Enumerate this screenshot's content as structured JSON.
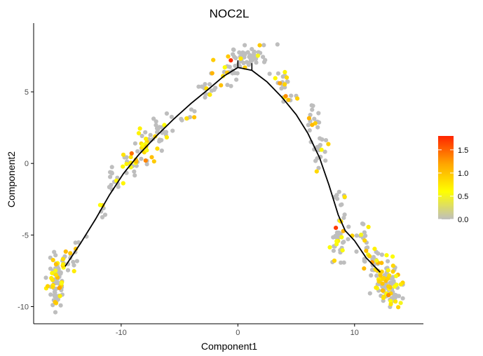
{
  "chart_data": {
    "type": "scatter",
    "title": "NOC2L",
    "xlabel": "Component1",
    "ylabel": "Component2",
    "xlim": [
      -17.5,
      15.9
    ],
    "ylim": [
      -11.2,
      9.8
    ],
    "x_ticks": [
      -10,
      0,
      10
    ],
    "y_ticks": [
      -10,
      -5,
      0,
      5
    ],
    "grid": false,
    "legend": {
      "placement": "right",
      "type": "colorbar",
      "min": 0.0,
      "max": 1.8,
      "ticks": [
        0.0,
        0.5,
        1.0,
        1.5
      ],
      "colors": [
        "#bebebe",
        "#ffff00",
        "#ffa500",
        "#ff2400"
      ]
    },
    "trajectory": [
      [
        -14.8,
        -7.2
      ],
      [
        -13.5,
        -5.6
      ],
      [
        -12.2,
        -3.9
      ],
      [
        -11.0,
        -2.2
      ],
      [
        -9.8,
        -0.7
      ],
      [
        -8.5,
        0.6
      ],
      [
        -7.0,
        1.9
      ],
      [
        -5.5,
        3.1
      ],
      [
        -4.0,
        4.2
      ],
      [
        -2.5,
        5.2
      ],
      [
        -1.2,
        6.1
      ],
      [
        0.0,
        6.7
      ],
      [
        1.2,
        6.5
      ],
      [
        2.5,
        5.7
      ],
      [
        3.8,
        4.6
      ],
      [
        5.0,
        3.4
      ],
      [
        6.0,
        2.1
      ],
      [
        7.0,
        0.4
      ],
      [
        7.8,
        -1.5
      ],
      [
        8.6,
        -3.6
      ],
      [
        9.2,
        -4.7
      ],
      [
        10.0,
        -5.4
      ],
      [
        11.0,
        -6.6
      ],
      [
        12.2,
        -7.6
      ]
    ],
    "cluster_spec": [
      {
        "cx": -15.5,
        "cy": -8.3,
        "sx": 0.45,
        "sy": 0.8,
        "n": 75,
        "hot": 0.32
      },
      {
        "cx": -14.8,
        "cy": -7.0,
        "sx": 0.4,
        "sy": 0.5,
        "n": 18,
        "hot": 0.3
      },
      {
        "cx": -13.5,
        "cy": -5.7,
        "sx": 0.35,
        "sy": 0.4,
        "n": 6,
        "hot": 0.3
      },
      {
        "cx": -11.8,
        "cy": -3.3,
        "sx": 0.4,
        "sy": 0.5,
        "n": 7,
        "hot": 0.2
      },
      {
        "cx": -10.4,
        "cy": -1.2,
        "sx": 0.5,
        "sy": 0.5,
        "n": 15,
        "hot": 0.3
      },
      {
        "cx": -9.2,
        "cy": 0.2,
        "sx": 0.4,
        "sy": 0.5,
        "n": 18,
        "hot": 0.35
      },
      {
        "cx": -8.2,
        "cy": 1.4,
        "sx": 0.5,
        "sy": 0.6,
        "n": 28,
        "hot": 0.3
      },
      {
        "cx": -6.6,
        "cy": 2.1,
        "sx": 0.5,
        "sy": 0.5,
        "n": 24,
        "hot": 0.2
      },
      {
        "cx": -4.6,
        "cy": 3.3,
        "sx": 0.5,
        "sy": 0.4,
        "n": 10,
        "hot": 0.15
      },
      {
        "cx": -2.6,
        "cy": 5.0,
        "sx": 0.45,
        "sy": 0.4,
        "n": 14,
        "hot": 0.2
      },
      {
        "cx": -1.0,
        "cy": 6.3,
        "sx": 0.6,
        "sy": 0.5,
        "n": 22,
        "hot": 0.2
      },
      {
        "cx": 0.3,
        "cy": 7.4,
        "sx": 0.55,
        "sy": 0.5,
        "n": 30,
        "hot": 0.1
      },
      {
        "cx": 1.6,
        "cy": 7.7,
        "sx": 0.6,
        "sy": 0.4,
        "n": 24,
        "hot": 0.1
      },
      {
        "cx": 3.5,
        "cy": 5.7,
        "sx": 0.5,
        "sy": 0.5,
        "n": 14,
        "hot": 0.25
      },
      {
        "cx": 4.5,
        "cy": 4.5,
        "sx": 0.4,
        "sy": 0.5,
        "n": 10,
        "hot": 0.25
      },
      {
        "cx": 6.5,
        "cy": 3.0,
        "sx": 0.4,
        "sy": 0.5,
        "n": 18,
        "hot": 0.1
      },
      {
        "cx": 7.2,
        "cy": 0.8,
        "sx": 0.45,
        "sy": 0.6,
        "n": 16,
        "hot": 0.25
      },
      {
        "cx": 8.8,
        "cy": -2.4,
        "sx": 0.3,
        "sy": 0.4,
        "n": 8,
        "hot": 0.2
      },
      {
        "cx": 8.7,
        "cy": -5.3,
        "sx": 0.4,
        "sy": 0.9,
        "n": 34,
        "hot": 0.3
      },
      {
        "cx": 10.5,
        "cy": -5.0,
        "sx": 0.6,
        "sy": 0.5,
        "n": 16,
        "hot": 0.15
      },
      {
        "cx": 11.4,
        "cy": -6.5,
        "sx": 0.5,
        "sy": 0.5,
        "n": 18,
        "hot": 0.3
      },
      {
        "cx": 12.6,
        "cy": -8.2,
        "sx": 0.6,
        "sy": 0.7,
        "n": 90,
        "hot": 0.32
      },
      {
        "cx": 13.5,
        "cy": -9.3,
        "sx": 0.5,
        "sy": 0.4,
        "n": 22,
        "hot": 0.3
      }
    ],
    "highlight_points": [
      {
        "x": -0.6,
        "y": 7.2,
        "value": 1.75
      },
      {
        "x": 8.4,
        "y": -4.5,
        "value": 1.7
      },
      {
        "x": -9.1,
        "y": 0.7,
        "value": 1.45
      },
      {
        "x": -7.9,
        "y": 0.2,
        "value": 1.35
      },
      {
        "x": -15.3,
        "y": -8.7,
        "value": 1.2
      },
      {
        "x": 4.1,
        "y": 4.7,
        "value": 1.3
      },
      {
        "x": 11.5,
        "y": -6.9,
        "value": 1.25
      },
      {
        "x": 12.9,
        "y": -9.2,
        "value": 1.3
      },
      {
        "x": 3.6,
        "y": 5.6,
        "value": 1.2
      },
      {
        "x": -2.2,
        "y": 6.3,
        "value": 1.1
      }
    ]
  }
}
